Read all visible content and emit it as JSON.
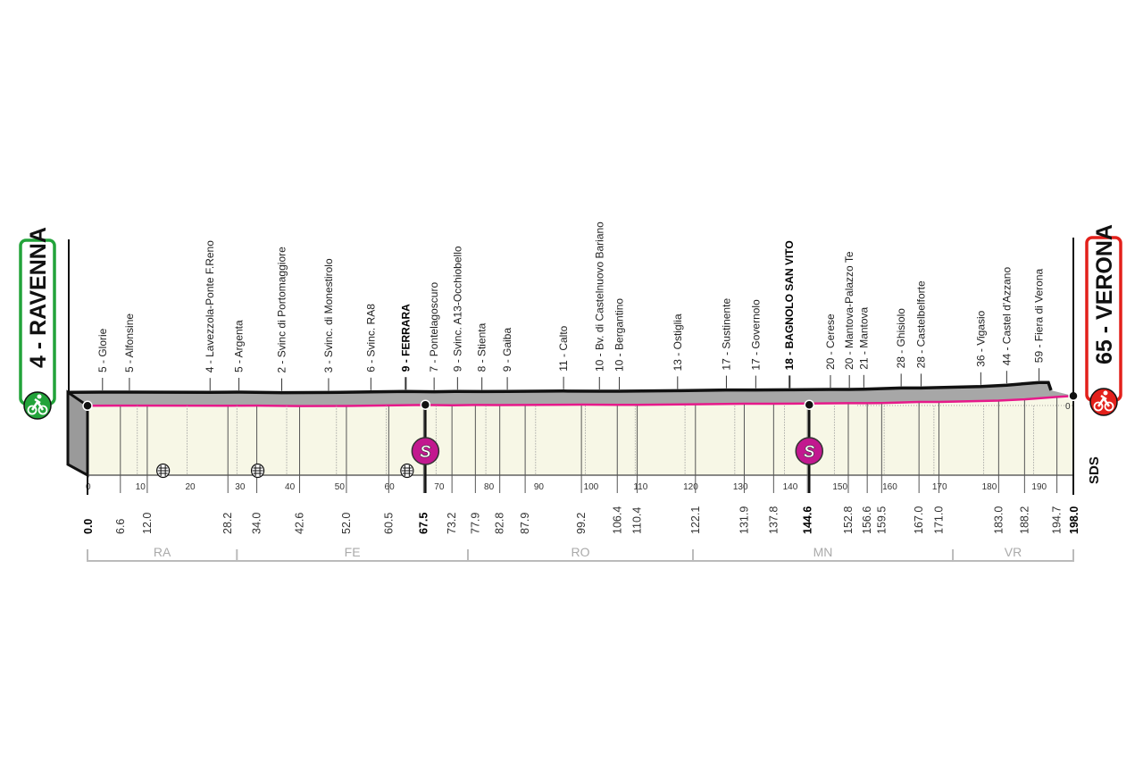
{
  "chart_data": {
    "type": "area",
    "title": "",
    "xlabel": "",
    "ylabel": "",
    "xlim": [
      0,
      198
    ],
    "x_ticks": [
      0,
      10,
      20,
      30,
      40,
      50,
      60,
      70,
      80,
      90,
      100,
      110,
      120,
      130,
      140,
      150,
      160,
      170,
      180,
      190
    ],
    "y_label_text": "0",
    "start": {
      "km": 0.0,
      "altitude": 4,
      "name": "RAVENNA",
      "label": "4 - RAVENNA",
      "km_label": "0.0",
      "color": "#22a33a"
    },
    "finish": {
      "km": 198.0,
      "altitude": 65,
      "name": "VERONA",
      "label": "65 - VERONA",
      "km_label": "198.0",
      "color": "#e3201b"
    },
    "waypoints": [
      {
        "km": 6.6,
        "km_label": "6.6",
        "altitude": 5,
        "label": "5 - Glorie"
      },
      {
        "km": 12.0,
        "km_label": "12.0",
        "altitude": 5,
        "label": "5 - Alfonsine"
      },
      {
        "km": 28.2,
        "km_label": "28.2",
        "altitude": 4,
        "label": "4 - Lavezzola-Ponte F.Reno"
      },
      {
        "km": 34.0,
        "km_label": "34.0",
        "altitude": 5,
        "label": "5 - Argenta"
      },
      {
        "km": 42.6,
        "km_label": "42.6",
        "altitude": 2,
        "label": "2 - Svinc di Portomaggiore"
      },
      {
        "km": 52.0,
        "km_label": "52.0",
        "altitude": 3,
        "label": "3 - Svinc. di Monestirolo"
      },
      {
        "km": 60.5,
        "km_label": "60.5",
        "altitude": 6,
        "label": "6 - Svinc. RA8"
      },
      {
        "km": 67.5,
        "km_label": "67.5",
        "altitude": 9,
        "label": "9 - FERRARA",
        "bold": true
      },
      {
        "km": 73.2,
        "km_label": "73.2",
        "altitude": 7,
        "label": "7 - Pontelagoscuro"
      },
      {
        "km": 77.9,
        "km_label": "77.9",
        "altitude": 9,
        "label": "9 - Svinc. A13-Occhiobello"
      },
      {
        "km": 82.8,
        "km_label": "82.8",
        "altitude": 8,
        "label": "8 - Stienta"
      },
      {
        "km": 87.9,
        "km_label": "87.9",
        "altitude": 9,
        "label": "9 - Gaiba"
      },
      {
        "km": 99.2,
        "km_label": "99.2",
        "altitude": 11,
        "label": "11 - Calto"
      },
      {
        "km": 106.4,
        "km_label": "106.4",
        "altitude": 10,
        "label": "10 - Bv. di Castelnuovo Bariano"
      },
      {
        "km": 110.4,
        "km_label": "110.4",
        "altitude": 10,
        "label": "10 - Bergantino"
      },
      {
        "km": 122.1,
        "km_label": "122.1",
        "altitude": 13,
        "label": "13 - Ostiglia"
      },
      {
        "km": 131.9,
        "km_label": "131.9",
        "altitude": 17,
        "label": "17 - Sustinente"
      },
      {
        "km": 137.8,
        "km_label": "137.8",
        "altitude": 17,
        "label": "17 - Governolo"
      },
      {
        "km": 144.6,
        "km_label": "144.6",
        "altitude": 18,
        "label": "18 - BAGNOLO SAN VITO",
        "bold": true
      },
      {
        "km": 152.8,
        "km_label": "152.8",
        "altitude": 20,
        "label": "20 - Cerese"
      },
      {
        "km": 156.6,
        "km_label": "156.6",
        "altitude": 20,
        "label": "20 - Mantova-Palazzo Te"
      },
      {
        "km": 159.5,
        "km_label": "159.5",
        "altitude": 21,
        "label": "21 - Mantova"
      },
      {
        "km": 167.0,
        "km_label": "167.0",
        "altitude": 28,
        "label": "28 - Ghisiolo"
      },
      {
        "km": 171.0,
        "km_label": "171.0",
        "altitude": 28,
        "label": "28 - Castelbelforte"
      },
      {
        "km": 183.0,
        "km_label": "183.0",
        "altitude": 36,
        "label": "36 - Vigasio"
      },
      {
        "km": 188.2,
        "km_label": "188.2",
        "altitude": 44,
        "label": "44 - Castel d'Azzano"
      },
      {
        "km": 194.7,
        "km_label": "194.7",
        "altitude": 59,
        "label": "59 - Fiera di Verona"
      }
    ],
    "sprints": [
      {
        "km": 67.5,
        "symbol": "S"
      },
      {
        "km": 144.6,
        "symbol": "S"
      }
    ],
    "level_crossings_km": [
      15,
      34,
      64
    ],
    "provinces": [
      {
        "code": "RA",
        "from": 0,
        "to": 30
      },
      {
        "code": "FE",
        "from": 30,
        "to": 76.4
      },
      {
        "code": "RO",
        "from": 76.4,
        "to": 121.6
      },
      {
        "code": "MN",
        "from": 121.6,
        "to": 173.8
      },
      {
        "code": "VR",
        "from": 173.8,
        "to": 198
      }
    ],
    "colors": {
      "profile_top": "#a7a7a7",
      "profile_panel": "#f7f7e6",
      "route_line": "#e6198a",
      "sprint": "#c2188f",
      "outline": "#111111"
    }
  },
  "logo": {
    "text": "SDS"
  }
}
